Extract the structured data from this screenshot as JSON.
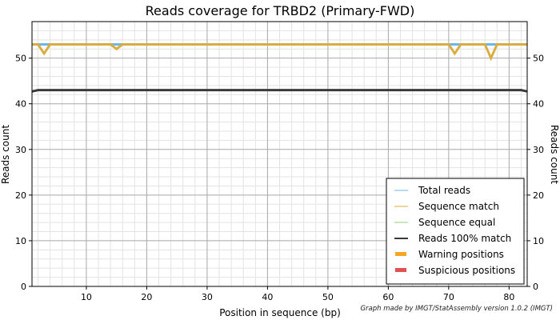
{
  "chart_data": {
    "type": "line",
    "title": "Reads coverage for TRBD2 (Primary-FWD)",
    "xlabel": "Position in sequence (bp)",
    "ylabel": "Reads count",
    "ylabel_right": "Reads count",
    "xlim": [
      1,
      83
    ],
    "ylim": [
      0,
      58
    ],
    "x_ticks": [
      10,
      20,
      30,
      40,
      50,
      60,
      70,
      80
    ],
    "y_ticks": [
      0,
      10,
      20,
      30,
      40,
      50
    ],
    "grid": true,
    "minor_grid": true,
    "legend_position": "bottom-right",
    "credit": "Graph made by IMGT/StatAssembly version 1.0.2 (IMGT)",
    "total_reads": 53,
    "series": [
      {
        "name": "Total reads",
        "color": "#6fb6e8",
        "style": "line",
        "points": [
          [
            1,
            53
          ],
          [
            83,
            53
          ]
        ]
      },
      {
        "name": "Sequence match",
        "color": "#e0a83a",
        "style": "line",
        "points": [
          [
            1,
            53
          ],
          [
            2,
            53
          ],
          [
            3,
            51
          ],
          [
            4,
            53
          ],
          [
            14,
            53
          ],
          [
            15,
            52
          ],
          [
            16,
            53
          ],
          [
            70,
            53
          ],
          [
            71,
            51
          ],
          [
            72,
            53
          ],
          [
            76,
            53
          ],
          [
            77,
            50
          ],
          [
            78,
            53
          ],
          [
            83,
            53
          ]
        ]
      },
      {
        "name": "Sequence equal",
        "color": "#8fcf7a",
        "style": "line",
        "points": [
          [
            1,
            53
          ],
          [
            2,
            53
          ],
          [
            3,
            51
          ],
          [
            4,
            53
          ],
          [
            14,
            53
          ],
          [
            15,
            52
          ],
          [
            16,
            53
          ],
          [
            70,
            53
          ],
          [
            71,
            51
          ],
          [
            72,
            53
          ],
          [
            76,
            53
          ],
          [
            77,
            50
          ],
          [
            78,
            53
          ],
          [
            83,
            53
          ]
        ]
      },
      {
        "name": "Reads 100% match",
        "color": "#3a3a3a",
        "style": "line",
        "points": [
          [
            1,
            42.7
          ],
          [
            2,
            43
          ],
          [
            82,
            43
          ],
          [
            83,
            42.7
          ]
        ]
      },
      {
        "name": "Warning positions",
        "color": "#f5a623",
        "style": "bar",
        "points": []
      },
      {
        "name": "Suspicious positions",
        "color": "#e05252",
        "style": "bar",
        "points": []
      }
    ]
  }
}
